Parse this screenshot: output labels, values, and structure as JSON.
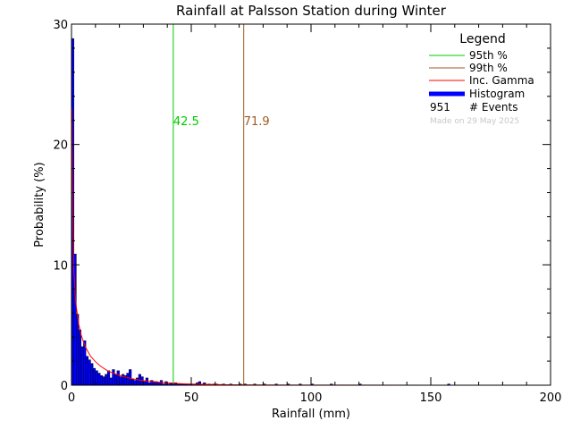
{
  "chart_data": {
    "type": "bar",
    "title": "Rainfall at Palsson Station during Winter",
    "xlabel": "Rainfall (mm)",
    "ylabel": "Probability (%)",
    "xlim": [
      0,
      200
    ],
    "ylim": [
      0,
      30
    ],
    "x_ticks": [
      0,
      50,
      100,
      150,
      200
    ],
    "y_ticks": [
      0,
      10,
      20,
      30
    ],
    "grid": false,
    "legend_position": "top-right",
    "legend_title": "Legend",
    "events_count": "951",
    "events_label": "# Events",
    "made_on": "Made on 29 May 2025",
    "series": [
      {
        "name": "Histogram",
        "type": "bar",
        "color": "#0000ff",
        "bin_width": 1,
        "x": [
          0,
          1,
          2,
          3,
          4,
          5,
          6,
          7,
          8,
          9,
          10,
          11,
          12,
          13,
          14,
          15,
          16,
          17,
          18,
          19,
          20,
          21,
          22,
          23,
          24,
          25,
          26,
          27,
          28,
          29,
          30,
          31,
          32,
          33,
          34,
          35,
          36,
          37,
          38,
          39,
          40,
          41,
          42,
          43,
          44,
          45,
          46,
          47,
          48,
          49,
          50,
          51,
          52,
          53,
          54,
          55,
          57,
          59,
          60,
          63,
          66,
          70,
          72,
          76,
          80,
          85,
          90,
          95,
          100,
          108,
          120,
          157
        ],
        "values": [
          28.8,
          10.9,
          5.9,
          4.6,
          3.2,
          3.7,
          2.4,
          2.1,
          1.8,
          1.4,
          1.2,
          1.0,
          0.8,
          0.7,
          0.9,
          1.2,
          0.6,
          1.3,
          0.9,
          1.2,
          0.7,
          0.9,
          0.8,
          1.0,
          1.3,
          0.5,
          0.4,
          0.6,
          0.9,
          0.7,
          0.3,
          0.6,
          0.2,
          0.4,
          0.3,
          0.3,
          0.2,
          0.4,
          0.1,
          0.3,
          0.1,
          0.2,
          0.1,
          0.2,
          0.1,
          0.1,
          0.1,
          0.1,
          0.1,
          0.1,
          0.1,
          0.1,
          0.2,
          0.3,
          0.1,
          0.2,
          0.1,
          0.1,
          0.1,
          0.1,
          0.1,
          0.1,
          0.1,
          0.1,
          0.1,
          0.1,
          0.1,
          0.1,
          0.1,
          0.1,
          0.1,
          0.1
        ]
      },
      {
        "name": "Inc. Gamma",
        "type": "line",
        "color": "#ff0000",
        "x": [
          0.2,
          0.4,
          0.6,
          0.8,
          1,
          1.5,
          2,
          3,
          4,
          5,
          6,
          8,
          10,
          12,
          15,
          18,
          20,
          25,
          30,
          35,
          40,
          45,
          50,
          60,
          70,
          80,
          100,
          150,
          200
        ],
        "values": [
          23.0,
          16.0,
          13.0,
          11.0,
          9.5,
          7.6,
          6.5,
          5.1,
          4.2,
          3.6,
          3.1,
          2.4,
          1.95,
          1.6,
          1.2,
          0.95,
          0.82,
          0.55,
          0.38,
          0.27,
          0.19,
          0.13,
          0.09,
          0.05,
          0.03,
          0.015,
          0.005,
          0.0,
          0.0
        ]
      }
    ],
    "reference_lines": [
      {
        "name": "95th %",
        "x": 42.5,
        "label": "42.5",
        "color": "#00cc00"
      },
      {
        "name": "99th %",
        "x": 71.9,
        "label": "71.9",
        "color": "#a05a20"
      }
    ]
  }
}
